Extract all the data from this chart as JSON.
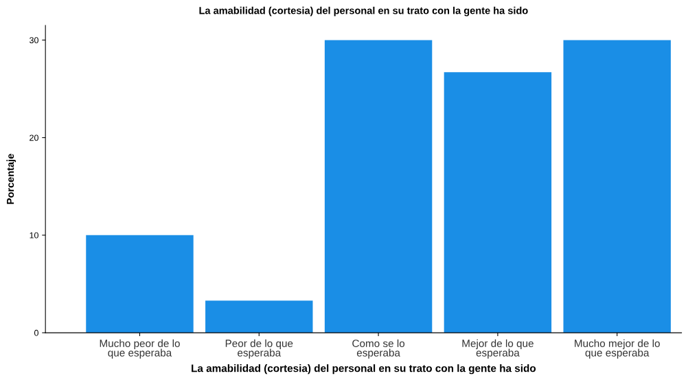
{
  "chart_data": {
    "type": "bar",
    "title": "La amabilidad (cortesia) del personal en su trato con la gente ha sido",
    "xlabel": "La amabilidad (cortesia) del personal en su trato con la gente ha sido",
    "ylabel": "Porcentaje",
    "categories": [
      "Mucho peor de lo\nque esperaba",
      "Peor de lo que\nesperaba",
      "Como se lo\nesperaba",
      "Mejor de lo que\nesperaba",
      "Mucho mejor de lo\nque esperaba"
    ],
    "values": [
      10,
      3.3,
      30,
      26.7,
      30
    ],
    "color": "#1a8ee6",
    "ylim": [
      0,
      31.5
    ],
    "yticks": [
      0,
      10,
      20,
      30
    ],
    "grid": false
  }
}
